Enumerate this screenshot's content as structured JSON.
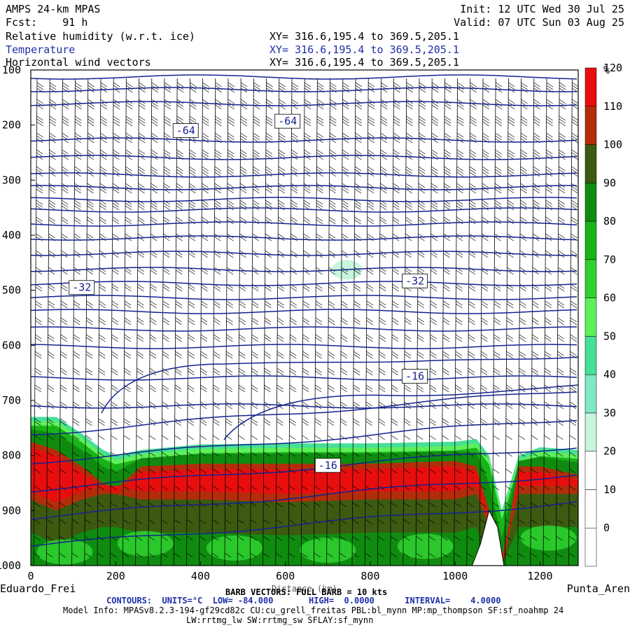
{
  "header": {
    "model": "AMPS 24-km MPAS",
    "fcst": "Fcst:    91 h",
    "init": "Init: 12 UTC Wed 30 Jul 25",
    "valid": "Valid: 07 UTC Sun 03 Aug 25",
    "fields": [
      {
        "label": "Relative humidity (w.r.t. ice)",
        "xy": "XY= 316.6,195.4 to 369.5,205.1"
      },
      {
        "label": "Temperature",
        "xy": "XY= 316.6,195.4 to 369.5,205.1"
      },
      {
        "label": "Horizontal wind vectors",
        "xy": "XY= 316.6,195.4 to 369.5,205.1"
      }
    ]
  },
  "colorbar": {
    "unit": "%",
    "levels": [
      0,
      10,
      20,
      30,
      40,
      50,
      60,
      70,
      80,
      90,
      100,
      110,
      120
    ],
    "colors": [
      "#ffffff",
      "#ffffff",
      "#ffffff",
      "#c8f5dc",
      "#7fe8c4",
      "#46e096",
      "#5ef05a",
      "#2fd22f",
      "#18b418",
      "#0f8c0f",
      "#3c5a10",
      "#b42d0a",
      "#e80e0e"
    ]
  },
  "footer": {
    "start_label": "Eduardo_Frei",
    "end_label": "Punta_Aren",
    "xlabel": "Distance (km)",
    "barb": "BARB VECTORS: FULL BARB = 10 kts",
    "contours": "CONTOURS:  UNITS=°C  LOW= -84.000       HIGH=  0.0000      INTERVAL=    4.0000",
    "model_info_1": "Model Info: MPASv8.2.3-194-gf29cd82c CU:cu_grell_freitas PBL:bl_mynn MP:mp_thompson SF:sf_noahmp 24",
    "model_info_2": "LW:rrtmg_lw SW:rrtmg_sw SFLAY:sf_mynn"
  },
  "chart_data": {
    "type": "heatmap",
    "title": "Relative humidity (w.r.t. ice)",
    "xlabel": "Distance (km)",
    "ylabel": "",
    "xlim": [
      0,
      1290
    ],
    "ylim": [
      1000,
      100
    ],
    "x_ticks": [
      0,
      200,
      400,
      600,
      800,
      1000,
      1200
    ],
    "y_ticks": [
      100,
      200,
      300,
      400,
      500,
      600,
      700,
      800,
      900,
      1000
    ],
    "temperature_labels": [
      {
        "x": 365,
        "p": 210,
        "text": "-64"
      },
      {
        "x": 605,
        "p": 193,
        "text": "-64"
      },
      {
        "x": 120,
        "p": 495,
        "text": "-32"
      },
      {
        "x": 905,
        "p": 483,
        "text": "-32"
      },
      {
        "x": 905,
        "p": 656,
        "text": "-16"
      },
      {
        "x": 700,
        "p": 818,
        "text": "-16"
      }
    ],
    "moist_layer": {
      "x": [
        0,
        60,
        120,
        170,
        200,
        260,
        400,
        600,
        800,
        1000,
        1050,
        1080,
        1110,
        1150,
        1200,
        1290
      ],
      "top_p": [
        730,
        730,
        760,
        790,
        800,
        790,
        780,
        778,
        778,
        775,
        770,
        800,
        900,
        800,
        785,
        790
      ],
      "core_top_p": [
        775,
        790,
        820,
        850,
        860,
        820,
        815,
        815,
        815,
        810,
        820,
        900,
        1000,
        820,
        820,
        835
      ],
      "core_bottom_p": [
        880,
        900,
        880,
        870,
        870,
        880,
        880,
        885,
        880,
        880,
        870,
        930,
        1000,
        870,
        870,
        870
      ]
    },
    "terrain": {
      "x": [
        1040,
        1060,
        1080,
        1100,
        1115
      ],
      "p": [
        1000,
        960,
        900,
        930,
        1000
      ]
    }
  }
}
